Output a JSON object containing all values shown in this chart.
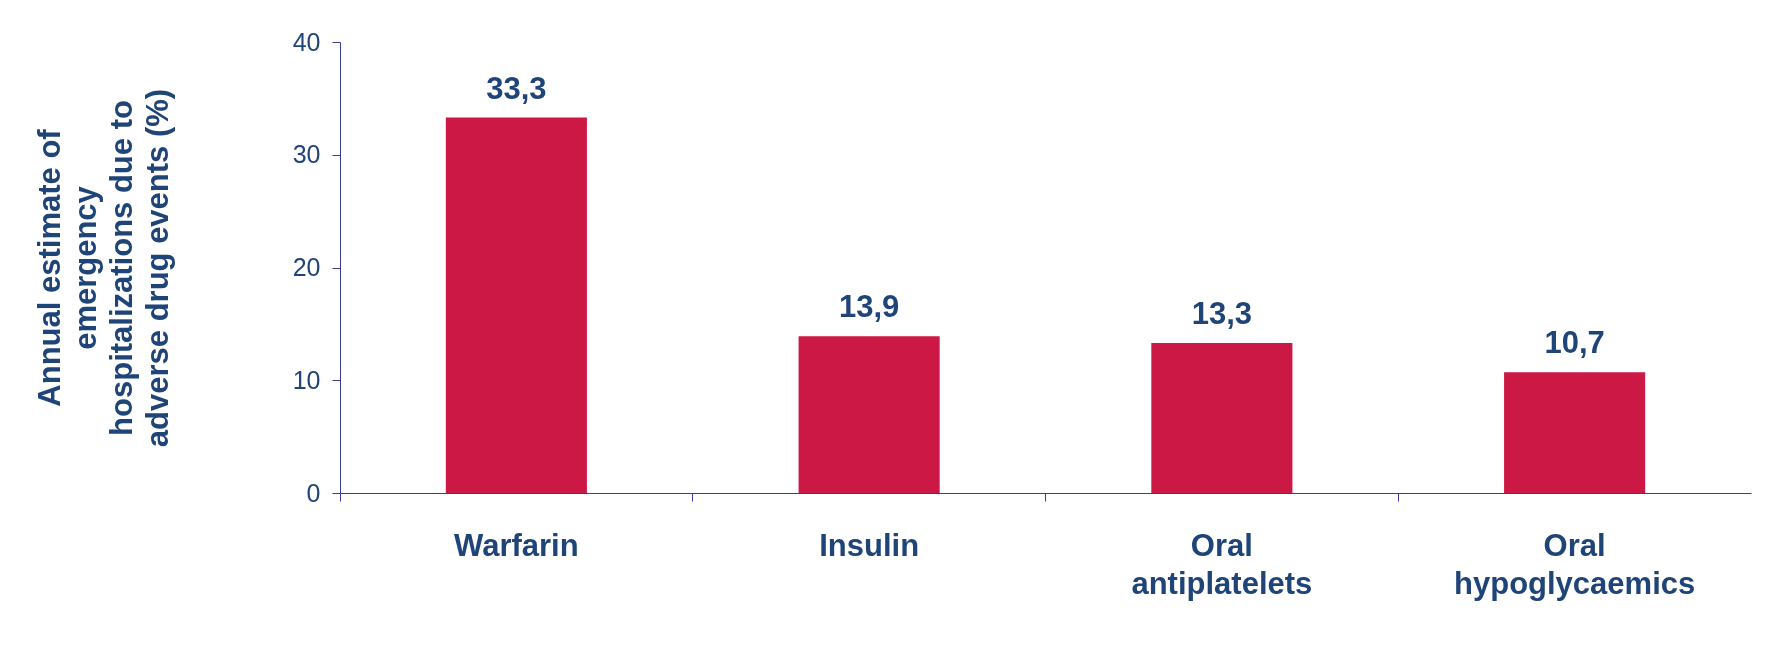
{
  "chart_data": {
    "type": "bar",
    "ylabel": "Annual estimate of\nemergency\nhospitalizations due to\nadverse drug events  (%)",
    "categories": [
      "Warfarin",
      "Insulin",
      "Oral antiplatelets",
      "Oral hypoglycaemics"
    ],
    "values": [
      33.3,
      13.9,
      13.3,
      10.7
    ],
    "value_labels": [
      "33,3",
      "13,9",
      "13,3",
      "10,7"
    ],
    "color": "#cc1844",
    "ylim": [
      0,
      40
    ],
    "yticks": [
      0,
      10,
      20,
      30,
      40
    ],
    "grid": false
  }
}
